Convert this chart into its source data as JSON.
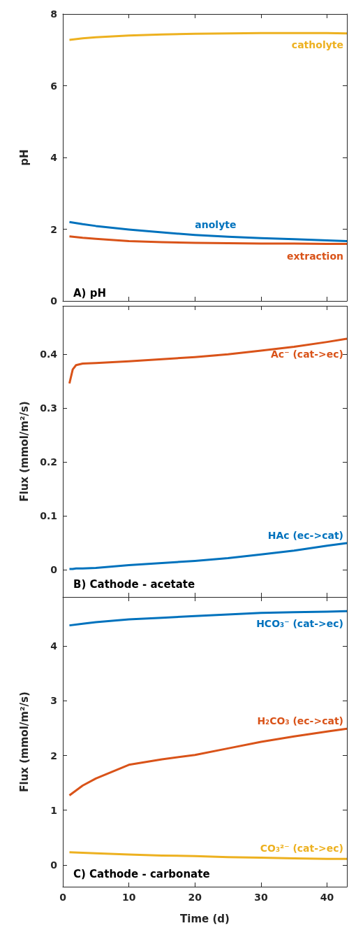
{
  "chart_data": [
    {
      "type": "line",
      "title": "A) pH",
      "ylabel": "pH",
      "x": [
        1,
        3,
        5,
        10,
        15,
        20,
        25,
        30,
        35,
        40,
        43
      ],
      "xlim": [
        0,
        43
      ],
      "xticks": [
        0,
        10,
        20,
        30,
        40
      ],
      "ylim": [
        0,
        8
      ],
      "yticks": [
        0,
        2,
        4,
        6,
        8
      ],
      "tick_labels": "y",
      "grid": false,
      "legend": false,
      "marker": "none",
      "line_style": "solid",
      "series": [
        {
          "name": "catholyte",
          "color": "#edb120",
          "values": [
            7.28,
            7.32,
            7.35,
            7.4,
            7.43,
            7.45,
            7.46,
            7.47,
            7.47,
            7.47,
            7.46
          ]
        },
        {
          "name": "anolyte",
          "color": "#0072bd",
          "values": [
            2.2,
            2.14,
            2.09,
            1.99,
            1.91,
            1.84,
            1.79,
            1.75,
            1.72,
            1.69,
            1.67
          ]
        },
        {
          "name": "extraction",
          "color": "#d95319",
          "values": [
            1.8,
            1.76,
            1.73,
            1.67,
            1.64,
            1.62,
            1.61,
            1.6,
            1.6,
            1.59,
            1.59
          ]
        }
      ]
    },
    {
      "type": "line",
      "title": "B) Cathode - acetate",
      "ylabel": "Flux (mmol/m²/s)",
      "x": [
        1,
        1.5,
        2,
        3,
        5,
        10,
        15,
        20,
        25,
        30,
        35,
        40,
        43
      ],
      "xlim": [
        0,
        43
      ],
      "xticks": [
        0,
        10,
        20,
        30,
        40
      ],
      "ylim": [
        -0.05,
        0.49
      ],
      "yticks": [
        0,
        0.1,
        0.2,
        0.3,
        0.4
      ],
      "tick_labels": "y",
      "grid": false,
      "legend": false,
      "marker": "none",
      "line_style": "solid",
      "series": [
        {
          "name": "Ac⁻ (cat->ec)",
          "color": "#d95319",
          "values": [
            0.346,
            0.372,
            0.38,
            0.383,
            0.384,
            0.387,
            0.391,
            0.395,
            0.4,
            0.407,
            0.414,
            0.423,
            0.429
          ]
        },
        {
          "name": "HAc (ec->cat)",
          "color": "#0072bd",
          "values": [
            0.002,
            0.002,
            0.003,
            0.003,
            0.004,
            0.009,
            0.013,
            0.017,
            0.022,
            0.029,
            0.036,
            0.045,
            0.05
          ]
        }
      ]
    },
    {
      "type": "line",
      "title": "C) Cathode - carbonate",
      "xlabel": "Time (d)",
      "ylabel": "Flux (mmol/m²/s)",
      "x": [
        1,
        3,
        5,
        10,
        15,
        20,
        25,
        30,
        35,
        40,
        43
      ],
      "xlim": [
        0,
        43
      ],
      "xticks": [
        0,
        10,
        20,
        30,
        40
      ],
      "ylim": [
        -0.4,
        4.9
      ],
      "yticks": [
        0,
        1,
        2,
        3,
        4
      ],
      "grid": false,
      "legend": false,
      "marker": "none",
      "line_style": "solid",
      "series": [
        {
          "name": "HCO₃⁻ (cat->ec)",
          "color": "#0072bd",
          "values": [
            4.38,
            4.41,
            4.44,
            4.49,
            4.52,
            4.55,
            4.58,
            4.61,
            4.62,
            4.63,
            4.64
          ]
        },
        {
          "name": "H₂CO₃ (ec->cat)",
          "color": "#d95319",
          "values": [
            1.27,
            1.45,
            1.58,
            1.83,
            1.93,
            2.01,
            2.13,
            2.25,
            2.35,
            2.44,
            2.49
          ]
        },
        {
          "name": "CO₃²⁻ (cat->ec)",
          "color": "#edb120",
          "values": [
            0.23,
            0.22,
            0.21,
            0.19,
            0.17,
            0.16,
            0.14,
            0.13,
            0.12,
            0.11,
            0.11
          ]
        }
      ]
    }
  ]
}
